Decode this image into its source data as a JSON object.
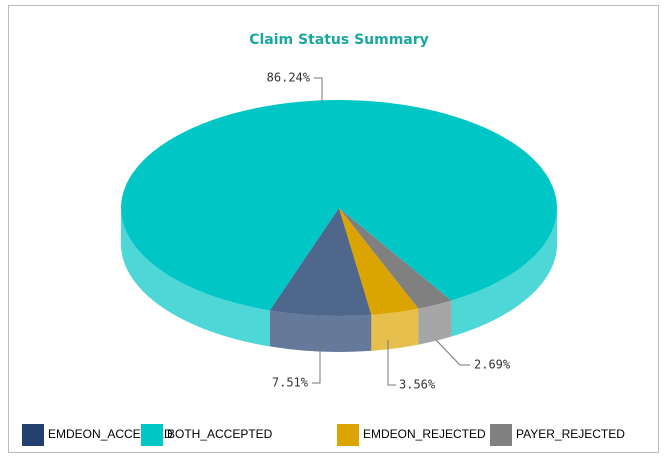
{
  "chart_data": {
    "type": "pie",
    "title": "Claim Status Summary",
    "categories": [
      "EMDEON_ACCEPTED",
      "BOTH_ACCEPTED",
      "EMDEON_REJECTED",
      "PAYER_REJECTED"
    ],
    "values": [
      7.51,
      86.24,
      3.56,
      2.69
    ],
    "value_labels": [
      "7.51%",
      "86.24%",
      "3.56%",
      "2.69%"
    ],
    "colors": [
      "#23416f",
      "#00c6c6",
      "#dba400",
      "#808080"
    ],
    "legend": "bottom"
  }
}
